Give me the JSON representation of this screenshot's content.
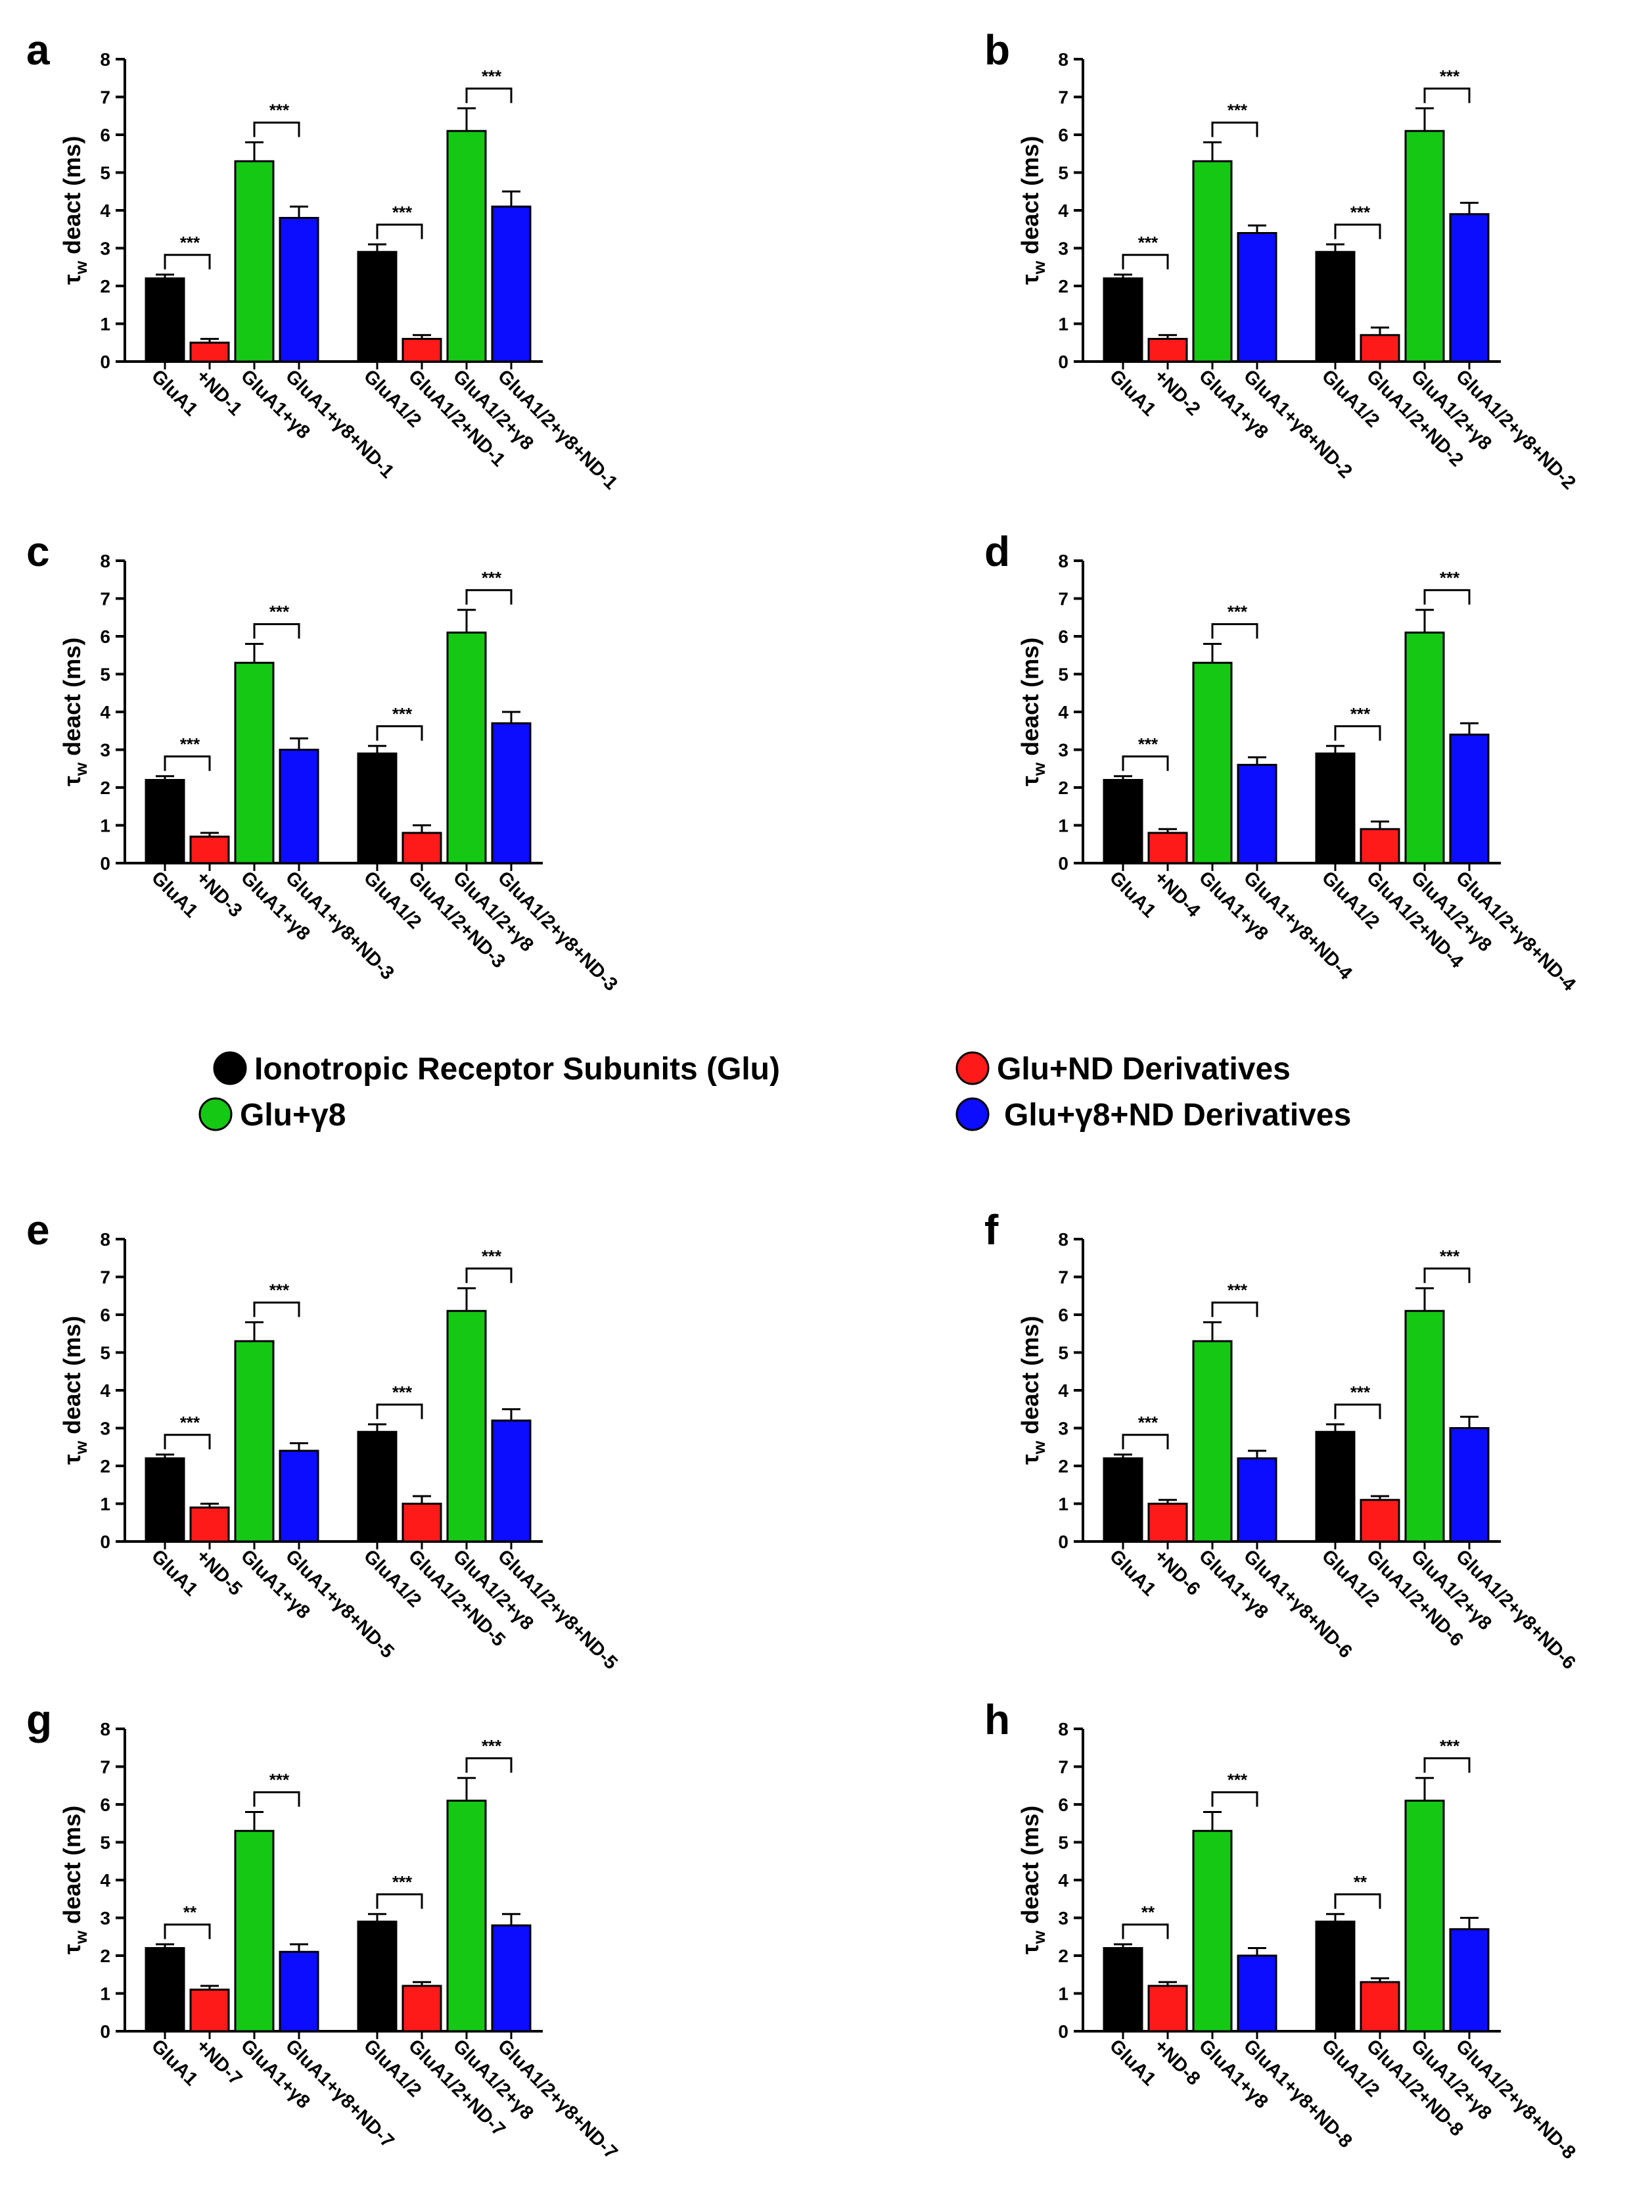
{
  "colors": {
    "glu": "#000000",
    "glu_nd": "#ff1a1a",
    "glu_g8": "#14c814",
    "glu_g8_nd": "#0c0cff"
  },
  "legend": [
    {
      "label": "Ionotropic Receptor Subunits (Glu)",
      "color": "#000000"
    },
    {
      "label": "Glu+ND Derivatives",
      "color": "#ff1a1a"
    },
    {
      "label": "Glu+γ8",
      "color": "#14c814"
    },
    {
      "label": "Glu+γ8+ND Derivatives",
      "color": "#0c0cff"
    }
  ],
  "chart_data": [
    {
      "type": "bar",
      "panel": "a",
      "ylabel_main": "τ",
      "ylabel_sub": "w",
      "ylabel_rest": " deact (ms)",
      "ylim": [
        0,
        8
      ],
      "yticks": [
        "0",
        "1",
        "2",
        "3",
        "4",
        "5",
        "6",
        "7",
        "8"
      ],
      "categories": [
        "GluA1",
        "+ND-1",
        "GluA1+γ8",
        "GluA1+γ8+ND-1",
        "GluA1/2",
        "GluA1/2+ND-1",
        "GluA1/2+γ8",
        "GluA1/2+γ8+ND-1"
      ],
      "values": [
        2.2,
        0.5,
        5.3,
        3.8,
        2.9,
        0.6,
        6.1,
        4.1
      ],
      "errors": [
        0.1,
        0.1,
        0.5,
        0.3,
        0.2,
        0.1,
        0.6,
        0.4
      ],
      "significance": [
        "***",
        "***",
        "***",
        "***"
      ]
    },
    {
      "type": "bar",
      "panel": "b",
      "ylabel_main": "τ",
      "ylabel_sub": "w",
      "ylabel_rest": " deact (ms)",
      "ylim": [
        0,
        8
      ],
      "yticks": [
        "0",
        "1",
        "2",
        "3",
        "4",
        "5",
        "6",
        "7",
        "8"
      ],
      "categories": [
        "GluA1",
        "+ND-2",
        "GluA1+γ8",
        "GluA1+γ8+ND-2",
        "GluA1/2",
        "GluA1/2+ND-2",
        "GluA1/2+γ8",
        "GluA1/2+γ8+ND-2"
      ],
      "values": [
        2.2,
        0.6,
        5.3,
        3.4,
        2.9,
        0.7,
        6.1,
        3.9
      ],
      "errors": [
        0.1,
        0.1,
        0.5,
        0.2,
        0.2,
        0.2,
        0.6,
        0.3
      ],
      "significance": [
        "***",
        "***",
        "***",
        "***"
      ]
    },
    {
      "type": "bar",
      "panel": "c",
      "ylabel_main": "τ",
      "ylabel_sub": "w",
      "ylabel_rest": " deact (ms)",
      "ylim": [
        0,
        8
      ],
      "yticks": [
        "0",
        "1",
        "2",
        "3",
        "4",
        "5",
        "6",
        "7",
        "8"
      ],
      "categories": [
        "GluA1",
        "+ND-3",
        "GluA1+γ8",
        "GluA1+γ8+ND-3",
        "GluA1/2",
        "GluA1/2+ND-3",
        "GluA1/2+γ8",
        "GluA1/2+γ8+ND-3"
      ],
      "values": [
        2.2,
        0.7,
        5.3,
        3.0,
        2.9,
        0.8,
        6.1,
        3.7
      ],
      "errors": [
        0.1,
        0.1,
        0.5,
        0.3,
        0.2,
        0.2,
        0.6,
        0.3
      ],
      "significance": [
        "***",
        "***",
        "***",
        "***"
      ]
    },
    {
      "type": "bar",
      "panel": "d",
      "ylabel_main": "τ",
      "ylabel_sub": "w",
      "ylabel_rest": " deact (ms)",
      "ylim": [
        0,
        8
      ],
      "yticks": [
        "0",
        "1",
        "2",
        "3",
        "4",
        "5",
        "6",
        "7",
        "8"
      ],
      "categories": [
        "GluA1",
        "+ND-4",
        "GluA1+γ8",
        "GluA1+γ8+ND-4",
        "GluA1/2",
        "GluA1/2+ND-4",
        "GluA1/2+γ8",
        "GluA1/2+γ8+ND-4"
      ],
      "values": [
        2.2,
        0.8,
        5.3,
        2.6,
        2.9,
        0.9,
        6.1,
        3.4
      ],
      "errors": [
        0.1,
        0.1,
        0.5,
        0.2,
        0.2,
        0.2,
        0.6,
        0.3
      ],
      "significance": [
        "***",
        "***",
        "***",
        "***"
      ]
    },
    {
      "type": "bar",
      "panel": "e",
      "ylabel_main": "τ",
      "ylabel_sub": "w",
      "ylabel_rest": " deact (ms)",
      "ylim": [
        0,
        8
      ],
      "yticks": [
        "0",
        "1",
        "2",
        "3",
        "4",
        "5",
        "6",
        "7",
        "8"
      ],
      "categories": [
        "GluA1",
        "+ND-5",
        "GluA1+γ8",
        "GluA1+γ8+ND-5",
        "GluA1/2",
        "GluA1/2+ND-5",
        "GluA1/2+γ8",
        "GluA1/2+γ8+ND-5"
      ],
      "values": [
        2.2,
        0.9,
        5.3,
        2.4,
        2.9,
        1.0,
        6.1,
        3.2
      ],
      "errors": [
        0.1,
        0.1,
        0.5,
        0.2,
        0.2,
        0.2,
        0.6,
        0.3
      ],
      "significance": [
        "***",
        "***",
        "***",
        "***"
      ]
    },
    {
      "type": "bar",
      "panel": "f",
      "ylabel_main": "τ",
      "ylabel_sub": "w",
      "ylabel_rest": " deact (ms)",
      "ylim": [
        0,
        8
      ],
      "yticks": [
        "0",
        "1",
        "2",
        "3",
        "4",
        "5",
        "6",
        "7",
        "8"
      ],
      "categories": [
        "GluA1",
        "+ND-6",
        "GluA1+γ8",
        "GluA1+γ8+ND-6",
        "GluA1/2",
        "GluA1/2+ND-6",
        "GluA1/2+γ8",
        "GluA1/2+γ8+ND-6"
      ],
      "values": [
        2.2,
        1.0,
        5.3,
        2.2,
        2.9,
        1.1,
        6.1,
        3.0
      ],
      "errors": [
        0.1,
        0.1,
        0.5,
        0.2,
        0.2,
        0.1,
        0.6,
        0.3
      ],
      "significance": [
        "***",
        "***",
        "***",
        "***"
      ]
    },
    {
      "type": "bar",
      "panel": "g",
      "ylabel_main": "τ",
      "ylabel_sub": "w",
      "ylabel_rest": " deact (ms)",
      "ylim": [
        0,
        8
      ],
      "yticks": [
        "0",
        "1",
        "2",
        "3",
        "4",
        "5",
        "6",
        "7",
        "8"
      ],
      "categories": [
        "GluA1",
        "+ND-7",
        "GluA1+γ8",
        "GluA1+γ8+ND-7",
        "GluA1/2",
        "GluA1/2+ND-7",
        "GluA1/2+γ8",
        "GluA1/2+γ8+ND-7"
      ],
      "values": [
        2.2,
        1.1,
        5.3,
        2.1,
        2.9,
        1.2,
        6.1,
        2.8
      ],
      "errors": [
        0.1,
        0.1,
        0.5,
        0.2,
        0.2,
        0.1,
        0.6,
        0.3
      ],
      "significance": [
        "**",
        "***",
        "***",
        "***"
      ]
    },
    {
      "type": "bar",
      "panel": "h",
      "ylabel_main": "τ",
      "ylabel_sub": "w",
      "ylabel_rest": " deact (ms)",
      "ylim": [
        0,
        8
      ],
      "yticks": [
        "0",
        "1",
        "2",
        "3",
        "4",
        "5",
        "6",
        "7",
        "8"
      ],
      "categories": [
        "GluA1",
        "+ND-8",
        "GluA1+γ8",
        "GluA1+γ8+ND-8",
        "GluA1/2",
        "GluA1/2+ND-8",
        "GluA1/2+γ8",
        "GluA1/2+γ8+ND-8"
      ],
      "values": [
        2.2,
        1.2,
        5.3,
        2.0,
        2.9,
        1.3,
        6.1,
        2.7
      ],
      "errors": [
        0.1,
        0.1,
        0.5,
        0.2,
        0.2,
        0.1,
        0.6,
        0.3
      ],
      "significance": [
        "**",
        "***",
        "**",
        "***"
      ]
    }
  ]
}
